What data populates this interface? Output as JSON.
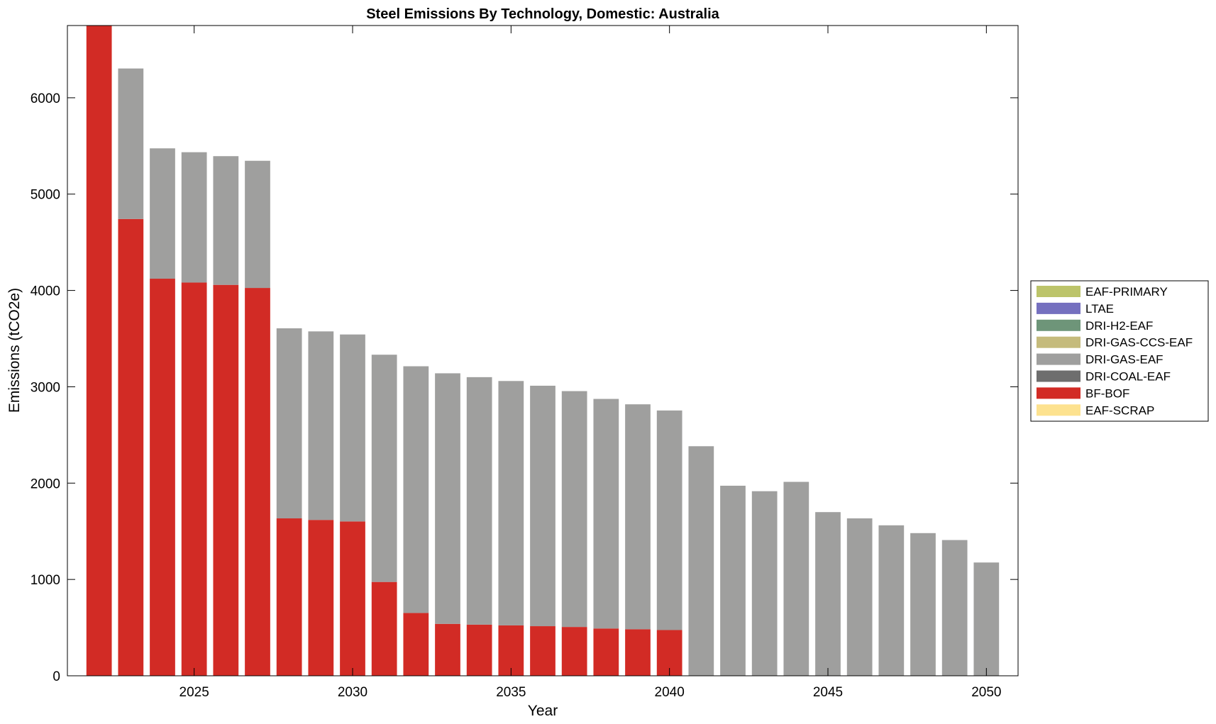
{
  "chart_data": {
    "type": "bar",
    "stacked": true,
    "title": "Steel Emissions By Technology, Domestic: Australia",
    "xlabel": "Year",
    "ylabel": "Emissions (tCO2e)",
    "xlim": [
      2021,
      2051
    ],
    "ylim": [
      0,
      6750
    ],
    "xticks": [
      2025,
      2030,
      2035,
      2040,
      2045,
      2050
    ],
    "yticks": [
      0,
      1000,
      2000,
      3000,
      4000,
      5000,
      6000
    ],
    "grid": false,
    "legend_placement": "outside-right",
    "categories": [
      2022,
      2023,
      2024,
      2025,
      2026,
      2027,
      2028,
      2029,
      2030,
      2031,
      2032,
      2033,
      2034,
      2035,
      2036,
      2037,
      2038,
      2039,
      2040,
      2041,
      2042,
      2043,
      2044,
      2045,
      2046,
      2047,
      2048,
      2049,
      2050
    ],
    "series": [
      {
        "name": "EAF-SCRAP",
        "color": "#fde28f",
        "values": [
          0,
          0,
          0,
          0,
          0,
          0,
          0,
          0,
          0,
          0,
          0,
          0,
          0,
          0,
          0,
          0,
          0,
          0,
          0,
          0,
          0,
          0,
          0,
          0,
          0,
          0,
          0,
          0,
          0
        ]
      },
      {
        "name": "BF-BOF",
        "color": "#d22b25",
        "values": [
          6760,
          4742,
          4122,
          4082,
          4058,
          4026,
          1634,
          1618,
          1602,
          974,
          652,
          539,
          531,
          523,
          515,
          507,
          491,
          483,
          475,
          0,
          0,
          0,
          0,
          0,
          0,
          0,
          0,
          0,
          0
        ]
      },
      {
        "name": "DRI-COAL-EAF",
        "color": "#6e6e6e",
        "values": [
          0,
          0,
          0,
          0,
          0,
          0,
          0,
          0,
          0,
          0,
          0,
          0,
          0,
          0,
          0,
          0,
          0,
          0,
          0,
          0,
          0,
          0,
          0,
          0,
          0,
          0,
          0,
          0,
          0
        ]
      },
      {
        "name": "DRI-GAS-EAF",
        "color": "#9f9f9e",
        "values": [
          0,
          1562,
          1353,
          1353,
          1336,
          1320,
          1973,
          1957,
          1941,
          2359,
          2561,
          2601,
          2569,
          2537,
          2496,
          2448,
          2383,
          2335,
          2279,
          2383,
          1973,
          1916,
          2013,
          1699,
          1634,
          1562,
          1481,
          1409,
          1176
        ]
      },
      {
        "name": "DRI-GAS-CCS-EAF",
        "color": "#c5bb7c",
        "values": [
          0,
          0,
          0,
          0,
          0,
          0,
          0,
          0,
          0,
          0,
          0,
          0,
          0,
          0,
          0,
          0,
          0,
          0,
          0,
          0,
          0,
          0,
          0,
          0,
          0,
          0,
          0,
          0,
          0
        ]
      },
      {
        "name": "DRI-H2-EAF",
        "color": "#6e9579",
        "values": [
          0,
          0,
          0,
          0,
          0,
          0,
          0,
          0,
          0,
          0,
          0,
          0,
          0,
          0,
          0,
          0,
          0,
          0,
          0,
          0,
          0,
          0,
          0,
          0,
          0,
          0,
          0,
          0,
          0
        ]
      },
      {
        "name": "LTAE",
        "color": "#7570bf",
        "values": [
          0,
          0,
          0,
          0,
          0,
          0,
          0,
          0,
          0,
          0,
          0,
          0,
          0,
          0,
          0,
          0,
          0,
          0,
          0,
          0,
          0,
          0,
          0,
          0,
          0,
          0,
          0,
          0,
          0
        ]
      },
      {
        "name": "EAF-PRIMARY",
        "color": "#bcc46a",
        "values": [
          0,
          0,
          0,
          0,
          0,
          0,
          0,
          0,
          0,
          0,
          0,
          0,
          0,
          0,
          0,
          0,
          0,
          0,
          0,
          0,
          0,
          0,
          0,
          0,
          0,
          0,
          0,
          0,
          0
        ]
      }
    ],
    "legend_order": [
      "EAF-PRIMARY",
      "LTAE",
      "DRI-H2-EAF",
      "DRI-GAS-CCS-EAF",
      "DRI-GAS-EAF",
      "DRI-COAL-EAF",
      "BF-BOF",
      "EAF-SCRAP"
    ]
  }
}
